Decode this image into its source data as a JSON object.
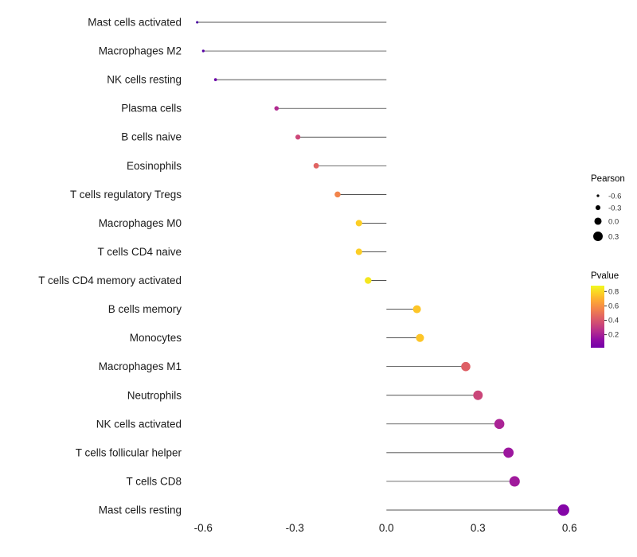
{
  "chart_data": {
    "type": "lollipop",
    "title": "",
    "xlabel": "",
    "ylabel": "",
    "grid": false,
    "legend_position": "right",
    "categories": [
      "Mast cells activated",
      "Macrophages M2",
      "NK cells resting",
      "Plasma cells",
      "B cells naive",
      "Eosinophils",
      "T cells regulatory  Tregs",
      "Macrophages M0",
      "T cells CD4 naive",
      "T cells CD4 memory activated",
      "B cells memory",
      "Monocytes",
      "Macrophages M1",
      "Neutrophils",
      "NK cells activated",
      "T cells follicular helper",
      "T cells CD8",
      "Mast cells resting"
    ],
    "pearson": [
      -0.62,
      -0.6,
      -0.56,
      -0.36,
      -0.29,
      -0.23,
      -0.16,
      -0.09,
      -0.09,
      -0.06,
      0.1,
      0.11,
      0.26,
      0.3,
      0.37,
      0.4,
      0.42,
      0.58
    ],
    "pvalue": [
      0.05,
      0.08,
      0.12,
      0.4,
      0.5,
      0.62,
      0.7,
      0.82,
      0.82,
      0.86,
      0.78,
      0.78,
      0.55,
      0.48,
      0.32,
      0.26,
      0.28,
      0.12
    ],
    "dot_colors": [
      "#47039f",
      "#5601a4",
      "#6a00a8",
      "#b12a90",
      "#cc4778",
      "#e16462",
      "#f2844b",
      "#fcce25",
      "#fcce25",
      "#f4e61e",
      "#fdc527",
      "#fdc527",
      "#de5f65",
      "#ca4679",
      "#aa2395",
      "#9c179e",
      "#a01a9c",
      "#8405a7"
    ],
    "x_ticks": [
      "-0.6",
      "-0.3",
      "0.0",
      "0.3",
      "0.6"
    ],
    "x_tick_values": [
      -0.6,
      -0.3,
      0.0,
      0.3,
      0.6
    ],
    "xlim": [
      -0.65,
      0.66
    ],
    "stem_color": "#1a1a1a",
    "text_color": "#1a1a1a",
    "legend_size": {
      "title": "Pearson",
      "tick_labels": [
        "-0.6",
        "-0.3",
        "0.0",
        "0.3"
      ],
      "tick_values": [
        -0.6,
        -0.3,
        0.0,
        0.3
      ],
      "dot_color": "#000000"
    },
    "legend_color": {
      "title": "Pvalue",
      "tick_labels": [
        "0.8",
        "0.6",
        "0.4",
        "0.2"
      ],
      "tick_values": [
        0.8,
        0.6,
        0.4,
        0.2
      ],
      "range": [
        0.88,
        0.02
      ],
      "gradient": [
        "#f0f921",
        "#fcce25",
        "#fca636",
        "#f2844b",
        "#e16462",
        "#cc4778",
        "#b12a90",
        "#8f0da4",
        "#7301a8"
      ]
    }
  }
}
